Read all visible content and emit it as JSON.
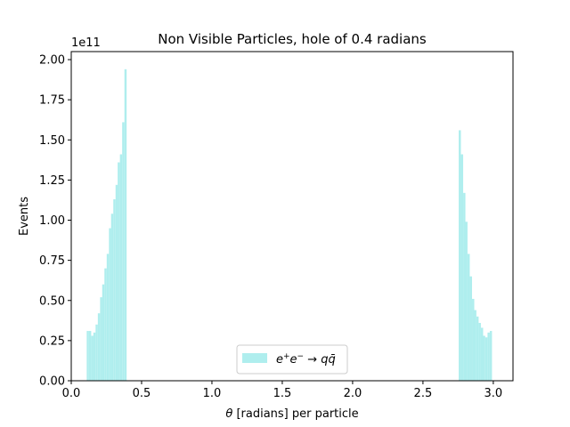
{
  "chart_data": {
    "type": "bar",
    "title": "Non Visible Particles, hole of 0.4 radians",
    "xlabel": "θ [radians] per particle",
    "ylabel": "Events",
    "y_offset_label": "1e11",
    "xlim": [
      0.0,
      3.14
    ],
    "ylim": [
      0.0,
      2.05
    ],
    "x_ticks": [
      "0.0",
      "0.5",
      "1.0",
      "1.5",
      "2.0",
      "2.5",
      "3.0"
    ],
    "y_ticks": [
      "0.00",
      "0.25",
      "0.50",
      "0.75",
      "1.00",
      "1.25",
      "1.50",
      "1.75",
      "2.00"
    ],
    "grid": false,
    "legend_position": "lower-center",
    "bin_width": 0.0157,
    "series": [
      {
        "name": "e⁺e⁻ → qq̄",
        "color": "#afeeee",
        "bins": [
          {
            "x": 0.11,
            "y": 0.31
          },
          {
            "x": 0.126,
            "y": 0.31
          },
          {
            "x": 0.142,
            "y": 0.28
          },
          {
            "x": 0.157,
            "y": 0.3
          },
          {
            "x": 0.173,
            "y": 0.35
          },
          {
            "x": 0.189,
            "y": 0.42
          },
          {
            "x": 0.205,
            "y": 0.52
          },
          {
            "x": 0.22,
            "y": 0.6
          },
          {
            "x": 0.236,
            "y": 0.7
          },
          {
            "x": 0.252,
            "y": 0.79
          },
          {
            "x": 0.268,
            "y": 0.95
          },
          {
            "x": 0.283,
            "y": 1.04
          },
          {
            "x": 0.299,
            "y": 1.13
          },
          {
            "x": 0.315,
            "y": 1.22
          },
          {
            "x": 0.33,
            "y": 1.36
          },
          {
            "x": 0.346,
            "y": 1.41
          },
          {
            "x": 0.362,
            "y": 1.61
          },
          {
            "x": 0.378,
            "y": 1.94
          },
          {
            "x": 2.754,
            "y": 1.56
          },
          {
            "x": 2.77,
            "y": 1.41
          },
          {
            "x": 2.786,
            "y": 1.17
          },
          {
            "x": 2.801,
            "y": 0.99
          },
          {
            "x": 2.817,
            "y": 0.79
          },
          {
            "x": 2.833,
            "y": 0.65
          },
          {
            "x": 2.849,
            "y": 0.51
          },
          {
            "x": 2.864,
            "y": 0.44
          },
          {
            "x": 2.88,
            "y": 0.4
          },
          {
            "x": 2.896,
            "y": 0.36
          },
          {
            "x": 2.912,
            "y": 0.33
          },
          {
            "x": 2.927,
            "y": 0.28
          },
          {
            "x": 2.943,
            "y": 0.27
          },
          {
            "x": 2.959,
            "y": 0.3
          },
          {
            "x": 2.975,
            "y": 0.31
          }
        ]
      }
    ]
  }
}
